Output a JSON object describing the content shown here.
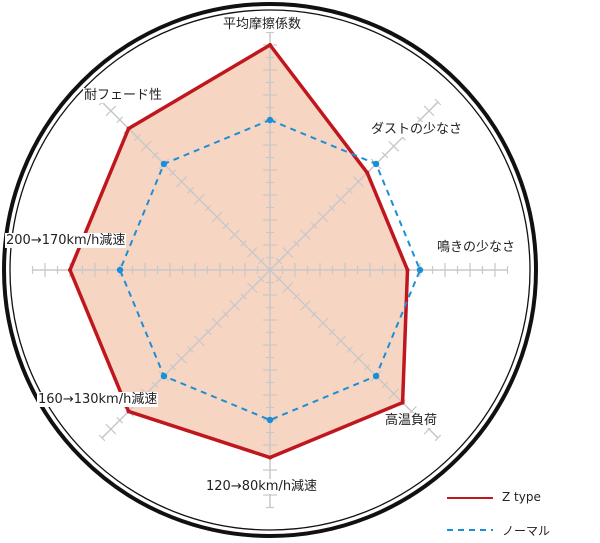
{
  "chart_data": {
    "type": "radar",
    "axes": [
      "平均摩擦係数",
      "ダストの少なさ",
      "鳴きの少なさ",
      "高温負荷",
      "120→80km/h減速",
      "160→130km/h減速",
      "200→170km/h減速",
      "耐フェード性"
    ],
    "range": [
      0,
      20
    ],
    "grid": true,
    "legend_placement": "bottom-right",
    "series": [
      {
        "name": "Z type",
        "values": [
          18,
          11,
          11,
          15,
          15,
          16,
          16,
          16
        ],
        "color": "#c0161e",
        "fill": "#f7d5c3",
        "style": "solid"
      },
      {
        "name": "ノーマル",
        "values": [
          12,
          12,
          12,
          12,
          12,
          12,
          12,
          12
        ],
        "color": "#1b8fd6",
        "style": "dashed"
      }
    ],
    "colors": {
      "grid": "#c8c8c8",
      "ring": "#111111"
    }
  }
}
